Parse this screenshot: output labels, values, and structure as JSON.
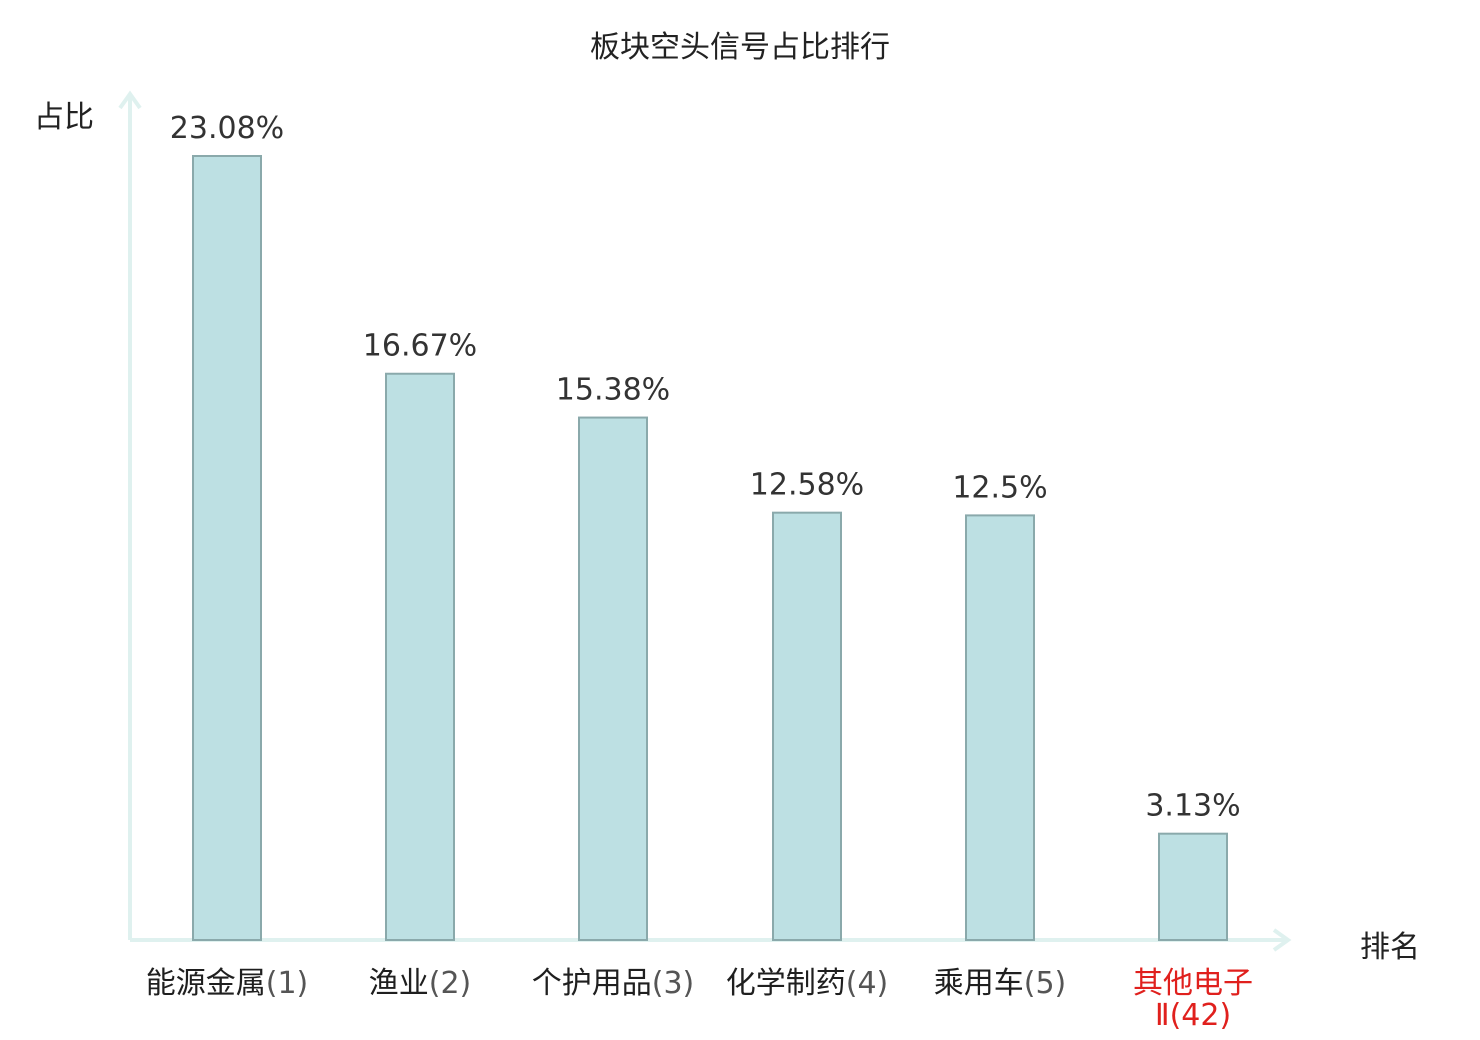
{
  "chart_data": {
    "type": "bar",
    "title": "板块空头信号占比排行",
    "ylabel": "占比",
    "xlabel": "排名",
    "ylim": [
      0,
      25
    ],
    "grid": false,
    "categories": [
      {
        "name": "能源金属",
        "rank": "(1)",
        "highlight": false
      },
      {
        "name": "渔业",
        "rank": "(2)",
        "highlight": false
      },
      {
        "name": "个护用品",
        "rank": "(3)",
        "highlight": false
      },
      {
        "name": "化学制药",
        "rank": "(4)",
        "highlight": false
      },
      {
        "name": "乘用车",
        "rank": "(5)",
        "highlight": false
      },
      {
        "name": "其他电子",
        "rank": "Ⅱ(42)",
        "highlight": true
      }
    ],
    "values": [
      23.08,
      16.67,
      15.38,
      12.58,
      12.5,
      3.13
    ],
    "value_labels": [
      "23.08%",
      "16.67%",
      "15.38%",
      "12.58%",
      "12.5%",
      "3.13%"
    ],
    "colors": {
      "bar_fill": "#bde0e3",
      "bar_stroke": "#8aa9ab",
      "axis": "#dff1ef",
      "highlight_text": "#e0201d"
    }
  }
}
